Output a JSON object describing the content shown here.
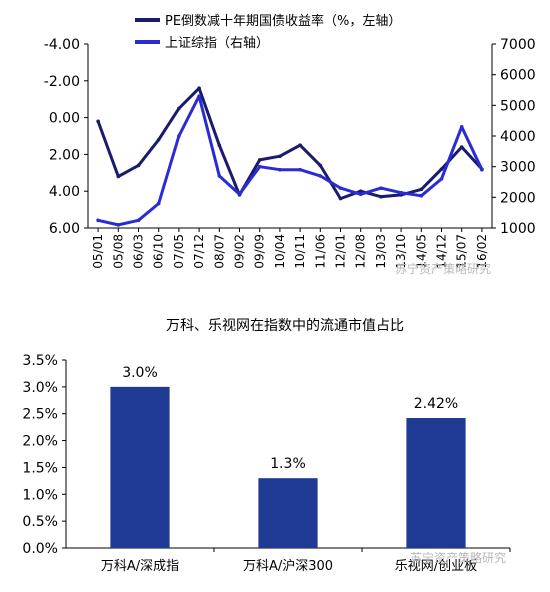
{
  "charts": [
    {
      "type": "line",
      "legend": [
        {
          "label": "PE倒数减十年期国债收益率（%，左轴）",
          "color": "#1a1a6e"
        },
        {
          "label": "上证综指（右轴）",
          "color": "#2b2bd6"
        }
      ],
      "legend_placement": "top-center",
      "x_ticks": [
        "05/01",
        "05/08",
        "06/03",
        "06/10",
        "07/05",
        "07/12",
        "08/07",
        "09/02",
        "09/09",
        "10/04",
        "10/11",
        "11/06",
        "12/01",
        "12/08",
        "13/03",
        "13/10",
        "14/05",
        "14/12",
        "15/07",
        "16/02"
      ],
      "y_left": {
        "ticks": [
          "-4.00",
          "-2.00",
          "0.00",
          "2.00",
          "4.00",
          "6.00"
        ],
        "inverted": true,
        "min": -4,
        "max": 6
      },
      "y_right": {
        "ticks": [
          "1000",
          "2000",
          "3000",
          "4000",
          "5000",
          "6000",
          "7000"
        ],
        "min": 1000,
        "max": 7000
      },
      "series": [
        {
          "name": "PE倒数减十年期国债收益率（%，左轴）",
          "axis": "left",
          "color": "#1a1a6e",
          "x": [
            "05/01",
            "05/08",
            "06/03",
            "06/10",
            "07/05",
            "07/12",
            "08/07",
            "09/02",
            "09/09",
            "10/04",
            "10/11",
            "11/06",
            "12/01",
            "12/08",
            "13/03",
            "13/10",
            "14/05",
            "14/12",
            "15/07",
            "16/02"
          ],
          "y": [
            0.2,
            3.2,
            2.6,
            1.2,
            -0.5,
            -1.6,
            1.5,
            4.2,
            2.3,
            2.1,
            1.5,
            2.6,
            4.4,
            4.0,
            4.3,
            4.2,
            3.9,
            2.8,
            1.6,
            2.8
          ]
        },
        {
          "name": "上证综指（右轴）",
          "axis": "right",
          "color": "#2b2bd6",
          "x": [
            "05/01",
            "05/08",
            "06/03",
            "06/10",
            "07/05",
            "07/12",
            "08/07",
            "09/02",
            "09/09",
            "10/04",
            "10/11",
            "11/06",
            "12/01",
            "12/08",
            "13/03",
            "13/10",
            "14/05",
            "14/12",
            "15/07",
            "16/02"
          ],
          "y": [
            1250,
            1100,
            1250,
            1800,
            4000,
            5300,
            2700,
            2100,
            3000,
            2900,
            2900,
            2700,
            2300,
            2100,
            2300,
            2150,
            2050,
            2600,
            4300,
            2900
          ]
        }
      ],
      "watermark": "苏宁资产策略研究"
    },
    {
      "type": "bar",
      "title": "万科、乐视网在指数中的流通市值占比",
      "categories": [
        "万科A/深成指",
        "万科A/沪深300",
        "乐视网/创业板"
      ],
      "values": [
        3.0,
        1.3,
        2.42
      ],
      "value_labels": [
        "3.0%",
        "1.3%",
        "2.42%"
      ],
      "y_ticks": [
        "0.0%",
        "0.5%",
        "1.0%",
        "1.5%",
        "2.0%",
        "2.5%",
        "3.0%",
        "3.5%"
      ],
      "ylim": [
        0,
        3.5
      ],
      "bar_color": "#1f3a93",
      "watermark": "苏宁资产策略研究"
    }
  ]
}
